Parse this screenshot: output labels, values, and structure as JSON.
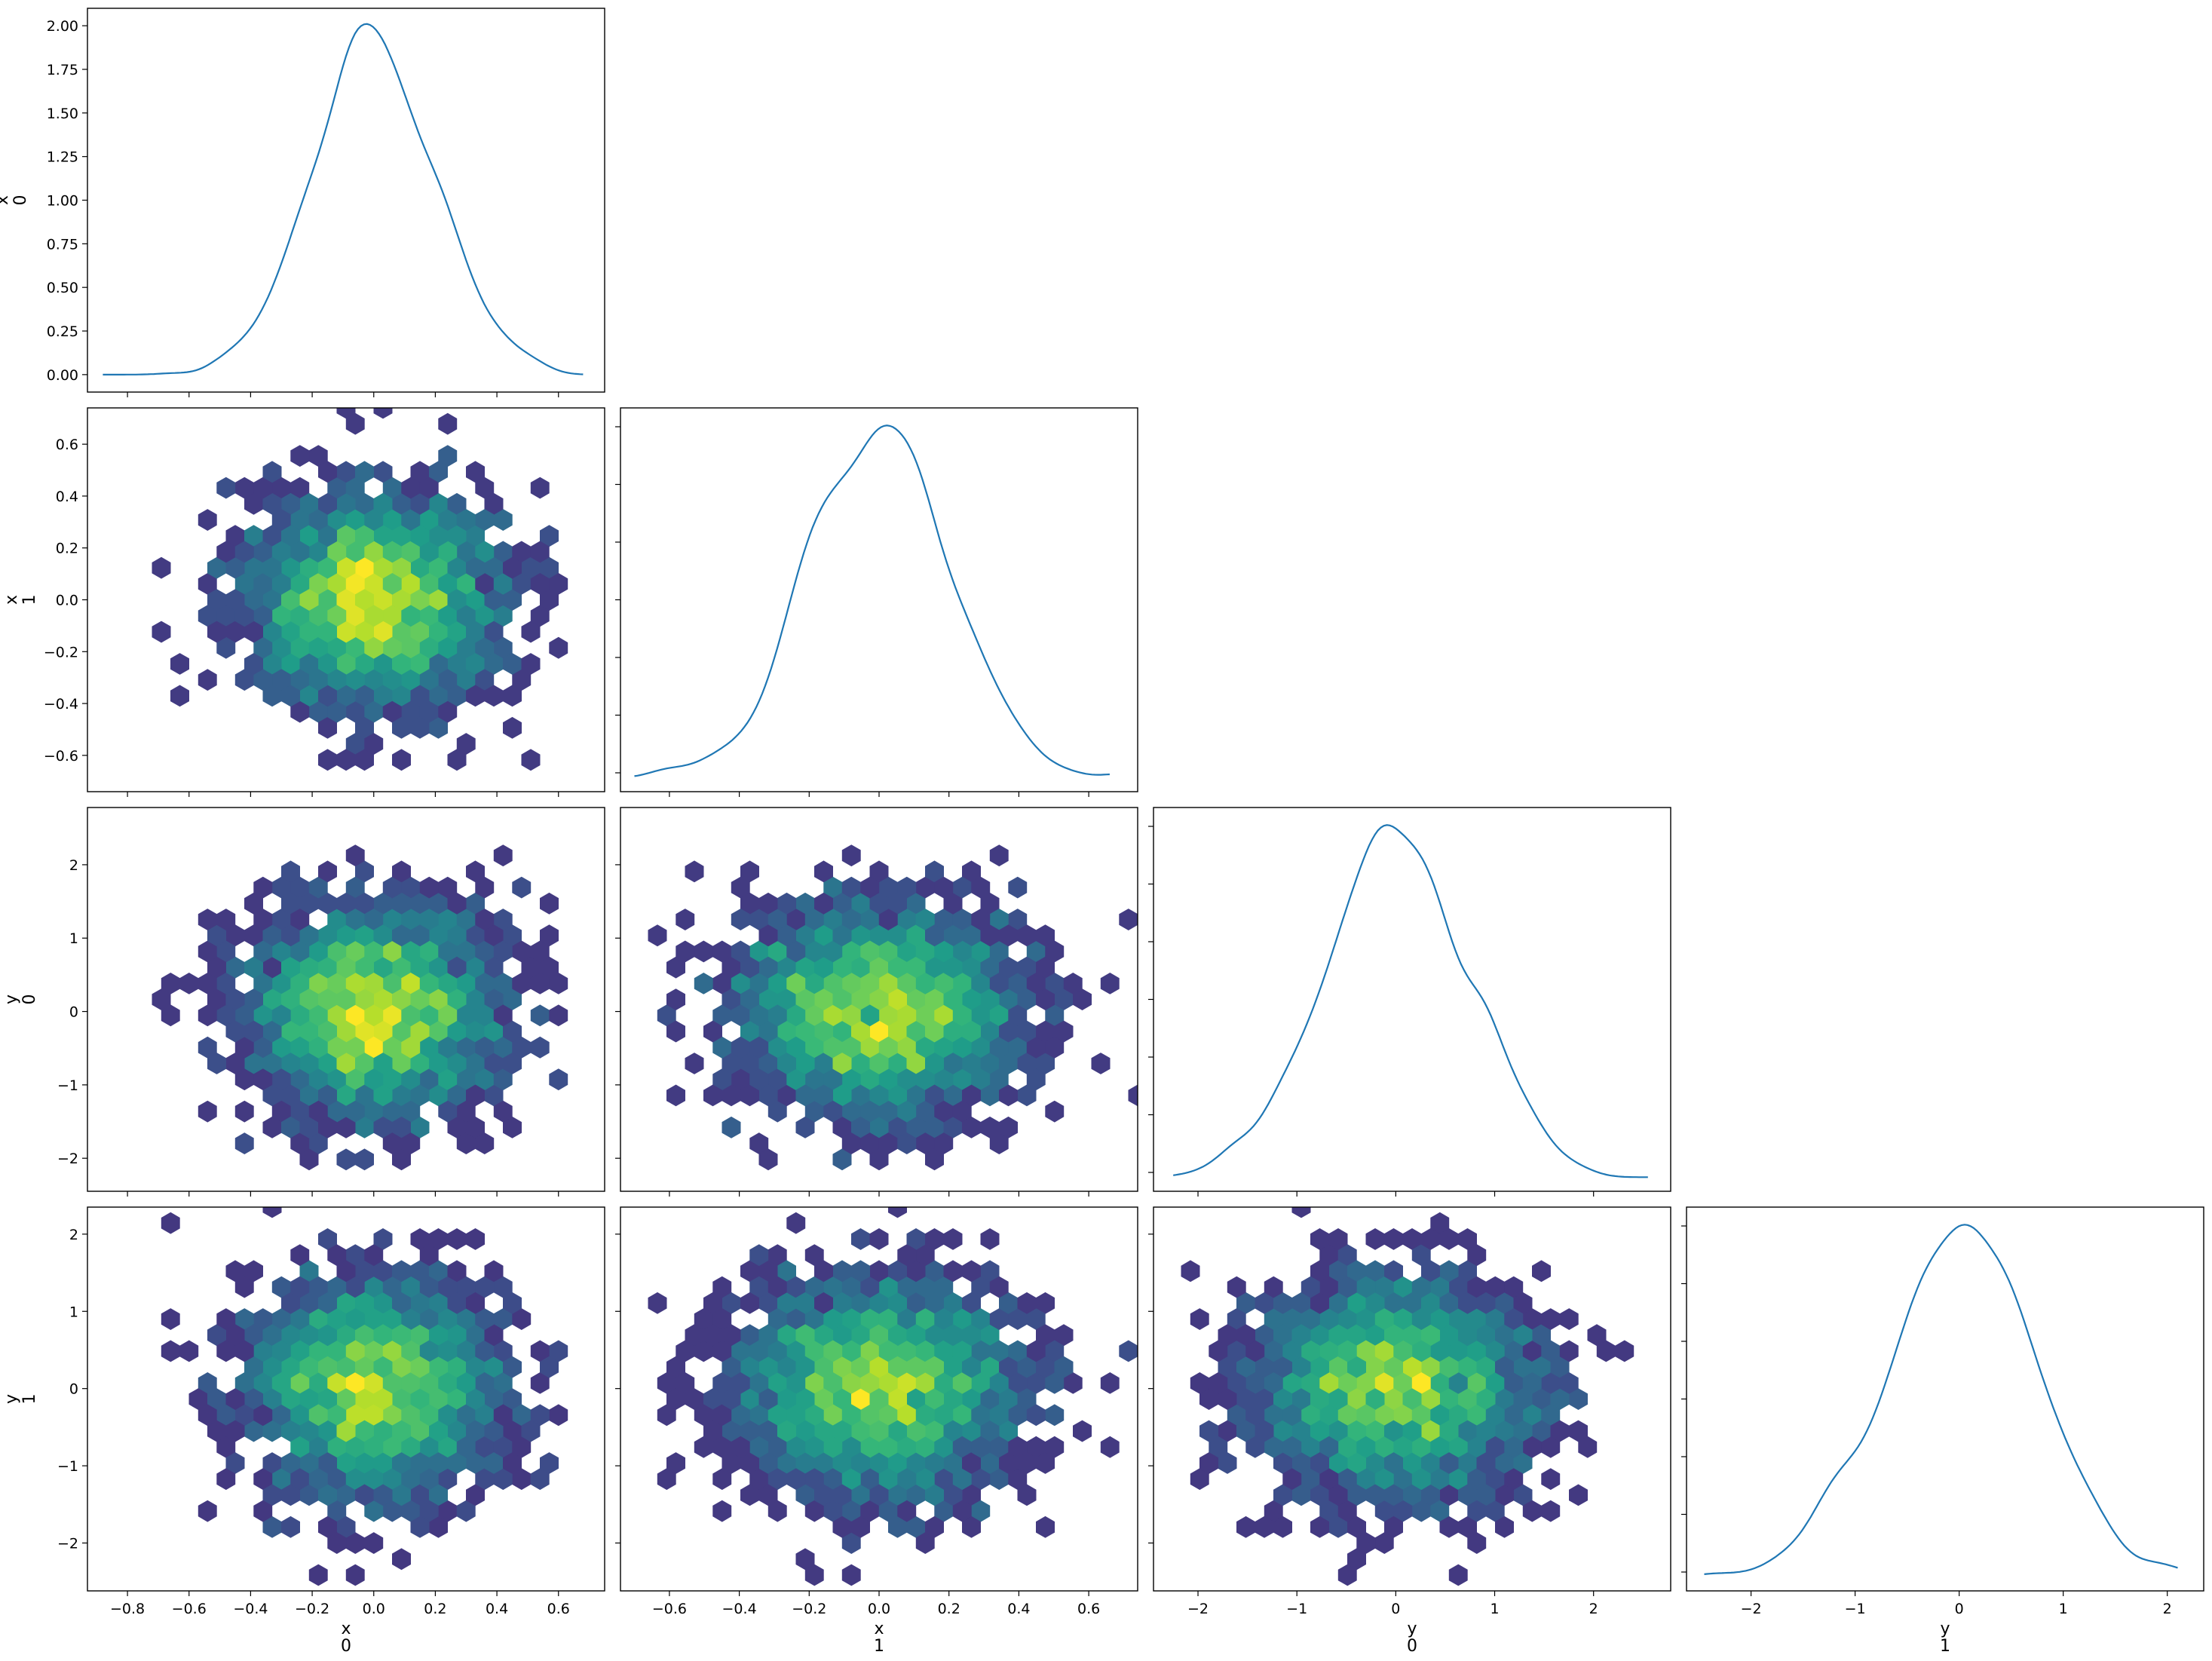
{
  "chart_data": {
    "type": "pair-plot",
    "variables": [
      {
        "id": "x0",
        "name": "x",
        "index": "0",
        "ticks": [
          -0.8,
          -0.6,
          -0.4,
          -0.2,
          0.0,
          0.2,
          0.4,
          0.6
        ],
        "tick_labels": [
          "−0.8",
          "−0.6",
          "−0.4",
          "−0.2",
          "0.0",
          "0.2",
          "0.4",
          "0.6"
        ],
        "range": [
          -0.93,
          0.75
        ],
        "sd": 0.2
      },
      {
        "id": "x1",
        "name": "x",
        "index": "1",
        "ticks": [
          -0.6,
          -0.4,
          -0.2,
          0.0,
          0.2,
          0.4,
          0.6
        ],
        "tick_labels": [
          "−0.6",
          "−0.4",
          "−0.2",
          "0.0",
          "0.2",
          "0.4",
          "0.6"
        ],
        "range": [
          -0.74,
          0.74
        ],
        "sd": 0.2
      },
      {
        "id": "y0",
        "name": "y",
        "index": "0",
        "ticks": [
          -2,
          -1,
          0,
          1,
          2
        ],
        "tick_labels": [
          "−2",
          "−1",
          "0",
          "1",
          "2"
        ],
        "range": [
          -2.45,
          2.78
        ],
        "sd": 0.7
      },
      {
        "id": "y1",
        "name": "y",
        "index": "1",
        "ticks": [
          -2,
          -1,
          0,
          1,
          2
        ],
        "tick_labels": [
          "−2",
          "−1",
          "0",
          "1",
          "2"
        ],
        "range": [
          -2.62,
          2.35
        ],
        "sd": 0.7
      }
    ],
    "diagonal": [
      {
        "variable": "x0",
        "type": "kde",
        "x_range": [
          -0.88,
          0.68
        ],
        "peak_at": 0.0,
        "ylim": [
          -0.1,
          2.1
        ],
        "yticks": [
          0.0,
          0.25,
          0.5,
          0.75,
          1.0,
          1.25,
          1.5,
          1.75,
          2.0
        ],
        "ytick_labels": [
          "0.00",
          "0.25",
          "0.50",
          "0.75",
          "1.00",
          "1.25",
          "1.50",
          "1.75",
          "2.00"
        ],
        "peak": 2.01
      },
      {
        "variable": "x1",
        "type": "kde",
        "x_range": [
          -0.7,
          0.66
        ],
        "peak_at": -0.03
      },
      {
        "variable": "y0",
        "type": "kde",
        "x_range": [
          -2.25,
          2.55
        ],
        "peak_at": 0.0
      },
      {
        "variable": "y1",
        "type": "kde",
        "x_range": [
          -2.45,
          2.1
        ],
        "peak_at": 0.05
      }
    ],
    "off_diagonal": {
      "type": "hexbin",
      "colormap": "viridis",
      "cells": [
        {
          "x": "x0",
          "y": "x1"
        },
        {
          "x": "x0",
          "y": "y0"
        },
        {
          "x": "x1",
          "y": "y0"
        },
        {
          "x": "x0",
          "y": "y1"
        },
        {
          "x": "x1",
          "y": "y1"
        },
        {
          "x": "y0",
          "y": "y1"
        }
      ]
    },
    "kde_color": "#1f77b4",
    "colormap_stops": [
      "#440154",
      "#482878",
      "#3e4989",
      "#31688e",
      "#26828e",
      "#1f9e89",
      "#35b779",
      "#6ece58",
      "#b5de2b",
      "#fde725"
    ],
    "grid": false,
    "legend": "none",
    "title": ""
  }
}
